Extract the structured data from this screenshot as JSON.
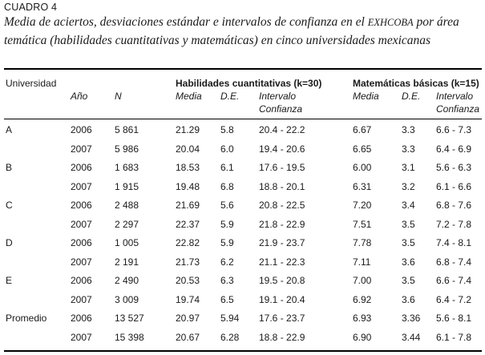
{
  "table_label": "CUADRO 4",
  "caption": {
    "line1_pre": "Media de aciertos, desviaciones estándar e intervalos de confianza en el ",
    "line1_sc": "EXHCOBA",
    "line1_post": " por área",
    "line2": "temática (habilidades cuantitativas y matemáticas) en cinco universidades mexicanas"
  },
  "headers": {
    "universidad": "Universidad",
    "anio": "Año",
    "n": "N",
    "group1": "Habilidades cuantitativas (k=30)",
    "group2": "Matemáticas básicas (k=15)",
    "media": "Media",
    "de": "D.E.",
    "intervalo": "Intervalo",
    "confianza": "Confianza"
  },
  "rows": [
    {
      "uni": "A",
      "year": "2006",
      "n": "5 861",
      "hc_media": "21.29",
      "hc_de": "5.8",
      "hc_ic": "20.4 - 22.2",
      "mb_media": "6.67",
      "mb_de": "3.3",
      "mb_ic": "6.6 - 7.3"
    },
    {
      "uni": "",
      "year": "2007",
      "n": "5 986",
      "hc_media": "20.04",
      "hc_de": "6.0",
      "hc_ic": "19.4 - 20.6",
      "mb_media": "6.65",
      "mb_de": "3.3",
      "mb_ic": "6.4 - 6.9"
    },
    {
      "uni": "B",
      "year": "2006",
      "n": "1 683",
      "hc_media": "18.53",
      "hc_de": "6.1",
      "hc_ic": "17.6 - 19.5",
      "mb_media": "6.00",
      "mb_de": "3.1",
      "mb_ic": "5.6 - 6.3"
    },
    {
      "uni": "",
      "year": "2007",
      "n": "1 915",
      "hc_media": "19.48",
      "hc_de": "6.8",
      "hc_ic": "18.8 - 20.1",
      "mb_media": "6.31",
      "mb_de": "3.2",
      "mb_ic": "6.1 - 6.6"
    },
    {
      "uni": "C",
      "year": "2006",
      "n": "2 488",
      "hc_media": "21.69",
      "hc_de": "5.6",
      "hc_ic": "20.8 - 22.5",
      "mb_media": "7.20",
      "mb_de": "3.4",
      "mb_ic": "6.8 - 7.6"
    },
    {
      "uni": "",
      "year": "2007",
      "n": "2 297",
      "hc_media": "22.37",
      "hc_de": "5.9",
      "hc_ic": "21.8 - 22.9",
      "mb_media": "7.51",
      "mb_de": "3.5",
      "mb_ic": "7.2 - 7.8"
    },
    {
      "uni": "D",
      "year": "2006",
      "n": "1 005",
      "hc_media": "22.82",
      "hc_de": "5.9",
      "hc_ic": "21.9 - 23.7",
      "mb_media": "7.78",
      "mb_de": "3.5",
      "mb_ic": "7.4 - 8.1"
    },
    {
      "uni": "",
      "year": "2007",
      "n": "2 191",
      "hc_media": "21.73",
      "hc_de": "6.2",
      "hc_ic": "21.1 - 22.3",
      "mb_media": "7.11",
      "mb_de": "3.6",
      "mb_ic": "6.8 - 7.4"
    },
    {
      "uni": "E",
      "year": "2006",
      "n": "2 490",
      "hc_media": "20.53",
      "hc_de": "6.3",
      "hc_ic": "19.5 - 20.8",
      "mb_media": "7.00",
      "mb_de": "3.5",
      "mb_ic": "6.6 - 7.4"
    },
    {
      "uni": "",
      "year": "2007",
      "n": "3 009",
      "hc_media": "19.74",
      "hc_de": "6.5",
      "hc_ic": "19.1 - 20.4",
      "mb_media": "6.92",
      "mb_de": "3.6",
      "mb_ic": "6.4 - 7.2"
    },
    {
      "uni": "Promedio",
      "year": "2006",
      "n": "13 527",
      "hc_media": "20.97",
      "hc_de": "5.94",
      "hc_ic": "17.6 - 23.7",
      "mb_media": "6.93",
      "mb_de": "3.36",
      "mb_ic": "5.6 - 8.1"
    },
    {
      "uni": "",
      "year": "2007",
      "n": "15 398",
      "hc_media": "20.67",
      "hc_de": "6.28",
      "hc_ic": "18.8 - 22.9",
      "mb_media": "6.90",
      "mb_de": "3.44",
      "mb_ic": "6.1 - 7.8"
    }
  ]
}
